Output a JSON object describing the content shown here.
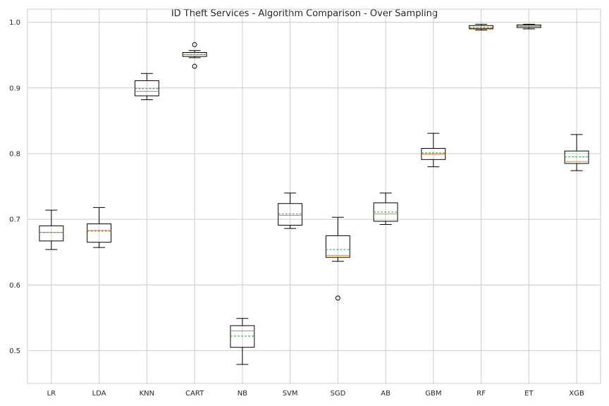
{
  "chart_data": {
    "type": "box",
    "title": "ID Theft Services - Algorithm Comparison - Over Sampling",
    "xlabel": "",
    "ylabel": "",
    "ylim": [
      0.45,
      1.02
    ],
    "yticks": [
      0.5,
      0.6,
      0.7,
      0.8,
      0.9,
      1.0
    ],
    "ytick_labels": [
      "0.5",
      "0.6",
      "0.7",
      "0.8",
      "0.9",
      "1.0"
    ],
    "grid": true,
    "categories": [
      "LR",
      "LDA",
      "KNN",
      "CART",
      "NB",
      "SVM",
      "SGD",
      "AB",
      "GBM",
      "RF",
      "ET",
      "XGB"
    ],
    "boxes": [
      {
        "whisker_low": 0.654,
        "q1": 0.667,
        "median": 0.68,
        "mean": 0.68,
        "q3": 0.69,
        "whisker_high": 0.714,
        "outliers": []
      },
      {
        "whisker_low": 0.657,
        "q1": 0.665,
        "median": 0.683,
        "mean": 0.682,
        "q3": 0.693,
        "whisker_high": 0.718,
        "outliers": []
      },
      {
        "whisker_low": 0.882,
        "q1": 0.888,
        "median": 0.895,
        "mean": 0.899,
        "q3": 0.911,
        "whisker_high": 0.922,
        "outliers": []
      },
      {
        "whisker_low": 0.946,
        "q1": 0.948,
        "median": 0.951,
        "mean": 0.951,
        "q3": 0.954,
        "whisker_high": 0.957,
        "outliers": [
          0.966,
          0.933
        ]
      },
      {
        "whisker_low": 0.479,
        "q1": 0.505,
        "median": 0.53,
        "mean": 0.522,
        "q3": 0.538,
        "whisker_high": 0.549,
        "outliers": []
      },
      {
        "whisker_low": 0.686,
        "q1": 0.691,
        "median": 0.706,
        "mean": 0.708,
        "q3": 0.724,
        "whisker_high": 0.74,
        "outliers": []
      },
      {
        "whisker_low": 0.636,
        "q1": 0.642,
        "median": 0.645,
        "mean": 0.654,
        "q3": 0.675,
        "whisker_high": 0.703,
        "outliers": [
          0.58
        ]
      },
      {
        "whisker_low": 0.692,
        "q1": 0.697,
        "median": 0.708,
        "mean": 0.711,
        "q3": 0.725,
        "whisker_high": 0.74,
        "outliers": []
      },
      {
        "whisker_low": 0.78,
        "q1": 0.791,
        "median": 0.799,
        "mean": 0.801,
        "q3": 0.808,
        "whisker_high": 0.831,
        "outliers": []
      },
      {
        "whisker_low": 0.988,
        "q1": 0.99,
        "median": 0.991,
        "mean": 0.992,
        "q3": 0.995,
        "whisker_high": 0.997,
        "outliers": []
      },
      {
        "whisker_low": 0.99,
        "q1": 0.992,
        "median": 0.994,
        "mean": 0.994,
        "q3": 0.996,
        "whisker_high": 0.997,
        "outliers": []
      },
      {
        "whisker_low": 0.774,
        "q1": 0.785,
        "median": 0.788,
        "mean": 0.795,
        "q3": 0.804,
        "whisker_high": 0.829,
        "outliers": []
      }
    ],
    "colors": {
      "box": "#000000",
      "median": "#e6822a",
      "mean": "#2ca02c",
      "grid": "#cccccc",
      "frame": "#cccccc"
    }
  }
}
